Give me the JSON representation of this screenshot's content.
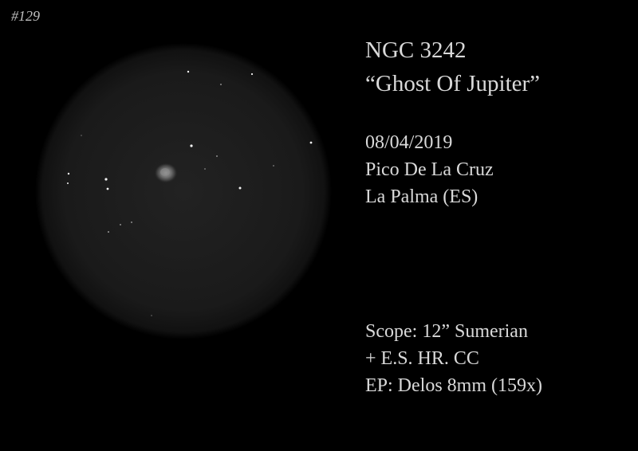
{
  "sketch_number": "#129",
  "title": {
    "object": "NGC 3242",
    "nickname": "“Ghost Of Jupiter”"
  },
  "observation": {
    "date": "08/04/2019",
    "site": "Pico De La Cruz",
    "location": "La Palma (ES)"
  },
  "equipment": {
    "scope": "Scope: 12” Sumerian",
    "accessory": "+ E.S. HR. CC",
    "eyepiece": "EP: Delos 8mm (159x)"
  },
  "colors": {
    "background": "#000000",
    "field_center": "#202020",
    "field_edge": "#111111",
    "text": "#d9d9d9"
  }
}
